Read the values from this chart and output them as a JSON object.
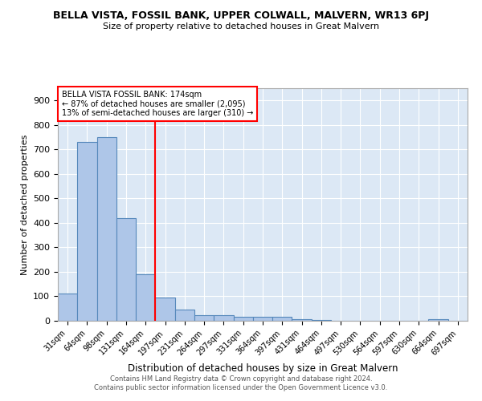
{
  "title": "BELLA VISTA, FOSSIL BANK, UPPER COLWALL, MALVERN, WR13 6PJ",
  "subtitle": "Size of property relative to detached houses in Great Malvern",
  "xlabel": "Distribution of detached houses by size in Great Malvern",
  "ylabel": "Number of detached properties",
  "footer_line1": "Contains HM Land Registry data © Crown copyright and database right 2024.",
  "footer_line2": "Contains public sector information licensed under the Open Government Licence v3.0.",
  "categories": [
    "31sqm",
    "64sqm",
    "98sqm",
    "131sqm",
    "164sqm",
    "197sqm",
    "231sqm",
    "264sqm",
    "297sqm",
    "331sqm",
    "364sqm",
    "397sqm",
    "431sqm",
    "464sqm",
    "497sqm",
    "530sqm",
    "564sqm",
    "597sqm",
    "630sqm",
    "664sqm",
    "697sqm"
  ],
  "values": [
    110,
    730,
    750,
    420,
    190,
    95,
    45,
    22,
    22,
    18,
    15,
    18,
    5,
    2,
    0,
    0,
    0,
    0,
    0,
    8,
    0
  ],
  "bar_color": "#aec6e8",
  "bar_edge_color": "#5588bb",
  "bg_color": "#dce8f5",
  "grid_color": "#ffffff",
  "property_label": "BELLA VISTA FOSSIL BANK: 174sqm",
  "annotation_line1": "← 87% of detached houses are smaller (2,095)",
  "annotation_line2": "13% of semi-detached houses are larger (310) →",
  "red_line_x": 4.5,
  "ylim": [
    0,
    950
  ],
  "yticks": [
    0,
    100,
    200,
    300,
    400,
    500,
    600,
    700,
    800,
    900
  ]
}
